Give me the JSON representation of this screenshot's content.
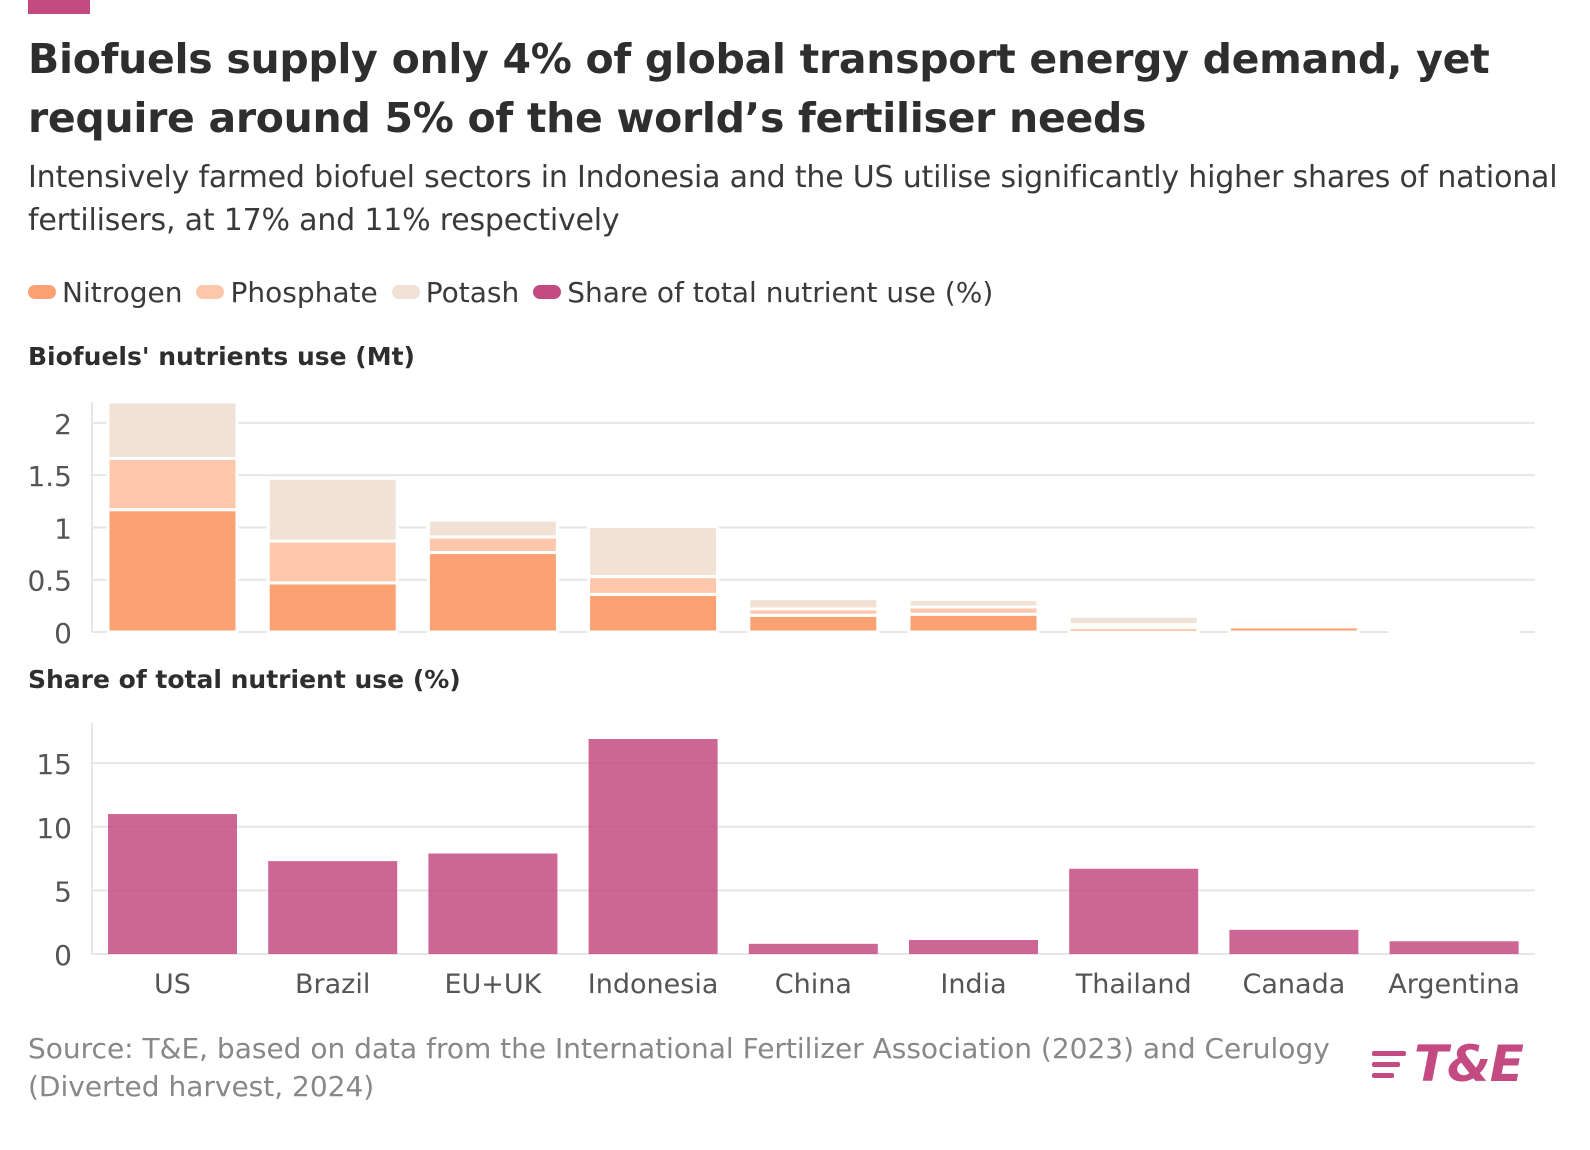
{
  "header": {
    "title": "Biofuels supply only 4% of global transport energy demand, yet require around 5% of the world’s fertiliser needs",
    "subtitle": "Intensively farmed biofuel sectors in Indonesia and the US utilise significantly higher shares of national fertilisers, at 17% and 11% respectively"
  },
  "legend": [
    {
      "label": "Nitrogen",
      "color": "#fca172"
    },
    {
      "label": "Phosphate",
      "color": "#fdc7ab"
    },
    {
      "label": "Potash",
      "color": "#f1e2d5"
    },
    {
      "label": "Share of total nutrient use (%)",
      "color": "#c44a82"
    }
  ],
  "footer": {
    "source": "Source: T&E, based on data from the International Fertilizer Association (2023) and Cerulogy (Diverted harvest, 2024)",
    "logo_text": "T&E"
  },
  "chart_data": [
    {
      "type": "bar",
      "stacked": true,
      "title": "Biofuels' nutrients use (Mt)",
      "categories": [
        "US",
        "Brazil",
        "EU+UK",
        "Indonesia",
        "China",
        "India",
        "Thailand",
        "Canada",
        "Argentina"
      ],
      "series": [
        {
          "name": "Nitrogen",
          "color": "#fca172",
          "values": [
            1.17,
            0.47,
            0.76,
            0.36,
            0.16,
            0.17,
            0.04,
            0.05,
            0.01
          ]
        },
        {
          "name": "Phosphate",
          "color": "#fdc7ab",
          "values": [
            0.49,
            0.4,
            0.15,
            0.17,
            0.06,
            0.07,
            0.03,
            0.02,
            0.005
          ]
        },
        {
          "name": "Potash",
          "color": "#f1e2d5",
          "values": [
            0.54,
            0.6,
            0.16,
            0.48,
            0.1,
            0.07,
            0.08,
            0.03,
            0.005
          ]
        }
      ],
      "yticks": [
        "0",
        "0.5",
        "1",
        "1.5",
        "2"
      ],
      "ylim": [
        0,
        2.2
      ],
      "grid": true
    },
    {
      "type": "bar",
      "title": "Share of total nutrient use (%)",
      "categories": [
        "US",
        "Brazil",
        "EU+UK",
        "Indonesia",
        "China",
        "India",
        "Thailand",
        "Canada",
        "Argentina"
      ],
      "series": [
        {
          "name": "Share of total nutrient use (%)",
          "color": "#c44a82",
          "values": [
            11,
            7.3,
            7.9,
            16.9,
            0.8,
            1.1,
            6.7,
            1.9,
            1.0
          ]
        }
      ],
      "yticks": [
        "0",
        "5",
        "10",
        "15"
      ],
      "ylim": [
        0,
        18
      ],
      "grid": true
    }
  ]
}
